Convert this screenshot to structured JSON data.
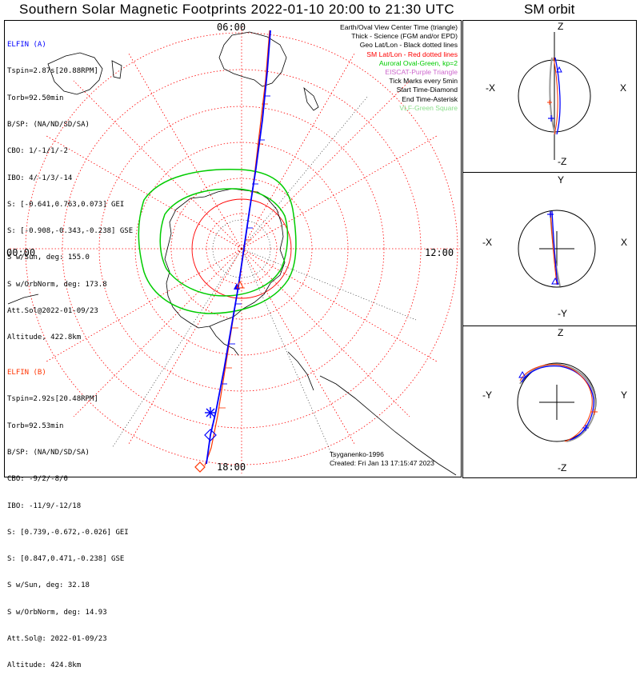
{
  "title": "Southern Solar Magnetic Footprints 2022-01-10 20:00 to 21:30 UTC",
  "orbit_title": "SM orbit",
  "local_times": {
    "top": "06:00",
    "left": "00:00",
    "right": "12:00",
    "bottom": "18:00"
  },
  "elfin_a": {
    "header": "ELFIN (A)",
    "lines": [
      "Tspin=2.87s[20.88RPM]",
      "Torb=92.50min",
      "B/SP: (NA/ND/SD/SA)",
      "CBO: 1/-1/1/-2",
      "IBO: 4/-1/3/-14",
      "S: [-0.641,0.763,0.073] GEI",
      "S: [-0.908,-0.343,-0.238] GSE",
      "S w/Sun, deg: 155.0",
      "S w/OrbNorm, deg: 173.8",
      "Att.Sol@2022-01-09/23",
      "Altitude, 422.8km"
    ],
    "color": "#0000ff"
  },
  "elfin_b": {
    "header": "ELFIN (B)",
    "lines": [
      "Tspin=2.92s[20.48RPM]",
      "Torb=92.53min",
      "B/SP: (NA/ND/SD/SA)",
      "CBO: -9/2/-8/0",
      "IBO: -11/9/-12/18",
      "S: [0.739,-0.672,-0.026] GEI",
      "S: [0.847,0.471,-0.238] GSE",
      "S w/Sun, deg: 32.18",
      "S w/OrbNorm, deg: 14.93",
      "Att.Sol@: 2022-01-09/23",
      "Altitude: 424.8km"
    ],
    "color": "#ff3300"
  },
  "legend": [
    {
      "text": "Earth/Oval View Center Time (triangle)",
      "color": "#000000"
    },
    {
      "text": "Thick - Science (FGM and/or EPD)",
      "color": "#000000"
    },
    {
      "text": "Geo Lat/Lon - Black dotted lines",
      "color": "#000000"
    },
    {
      "text": "SM Lat/Lon - Red dotted lines",
      "color": "#ff0000"
    },
    {
      "text": "Auroral Oval-Green, kp=2",
      "color": "#00cc00"
    },
    {
      "text": "EISCAT-Purple Triangle",
      "color": "#cc66cc"
    },
    {
      "text": "Tick Marks every 5min",
      "color": "#000000"
    },
    {
      "text": "Start Time-Diamond",
      "color": "#000000"
    },
    {
      "text": "End Time-Asterisk",
      "color": "#000000"
    },
    {
      "text": "VLF-Green Square",
      "color": "#88dd88"
    }
  ],
  "credit": [
    "Tsyganenko-1996",
    "Created: Fri Jan 13 17:15:47 2023"
  ],
  "orbit_panels": [
    {
      "top": "Z",
      "bottom": "-Z",
      "left": "-X",
      "right": "X"
    },
    {
      "top": "Y",
      "bottom": "-Y",
      "left": "-X",
      "right": "X"
    },
    {
      "top": "Z",
      "bottom": "-Z",
      "left": "-Y",
      "right": "Y"
    }
  ]
}
